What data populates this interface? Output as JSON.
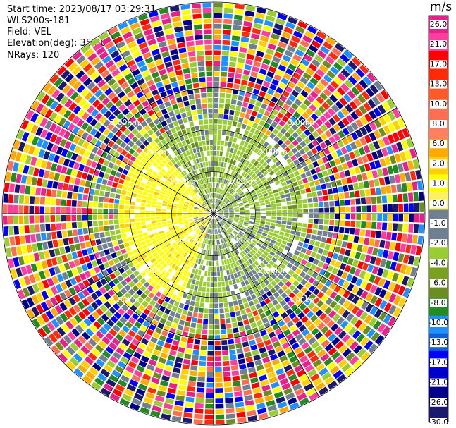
{
  "header": {
    "start_time": "Start time: 2023/08/17 03:29:31",
    "station": "WLS200s-181",
    "field": "Field: VEL",
    "elevation": "Elevation(deg): 35.30",
    "nrays": "NRays: 120"
  },
  "chart_data": {
    "type": "heatmap",
    "title": "",
    "colorbar_unit": "m/s",
    "colorbar_ticks": [
      "26.0",
      "21.0",
      "17.0",
      "13.0",
      "10.0",
      "8.0",
      "6.0",
      "2.0",
      "1.0",
      "0.0",
      "-1.0",
      "-2.0",
      "-4.0",
      "-6.0",
      "-8.0",
      "-10.0",
      "-13.0",
      "-17.0",
      "-21.0",
      "-26.0",
      "-30.0"
    ],
    "colorbar_colors": [
      "#e8208c",
      "#ff3ca0",
      "#ff0000",
      "#ff2a0a",
      "#ff5a28",
      "#ff6e50",
      "#ff8060",
      "#ffaa00",
      "#ffd000",
      "#ffff00",
      "#fff060",
      "#708090",
      "#6e8090",
      "#9acd32",
      "#7aa020",
      "#6b8e23",
      "#228b22",
      "#1e90ff",
      "#1060d0",
      "#0000ff",
      "#0000cd",
      "#00008b",
      "#191970"
    ],
    "range_rings_km": [
      1,
      2,
      3
    ],
    "ring_labels": [
      "1.00km",
      "2.00km",
      "3.00km"
    ],
    "nrays": 120
  }
}
